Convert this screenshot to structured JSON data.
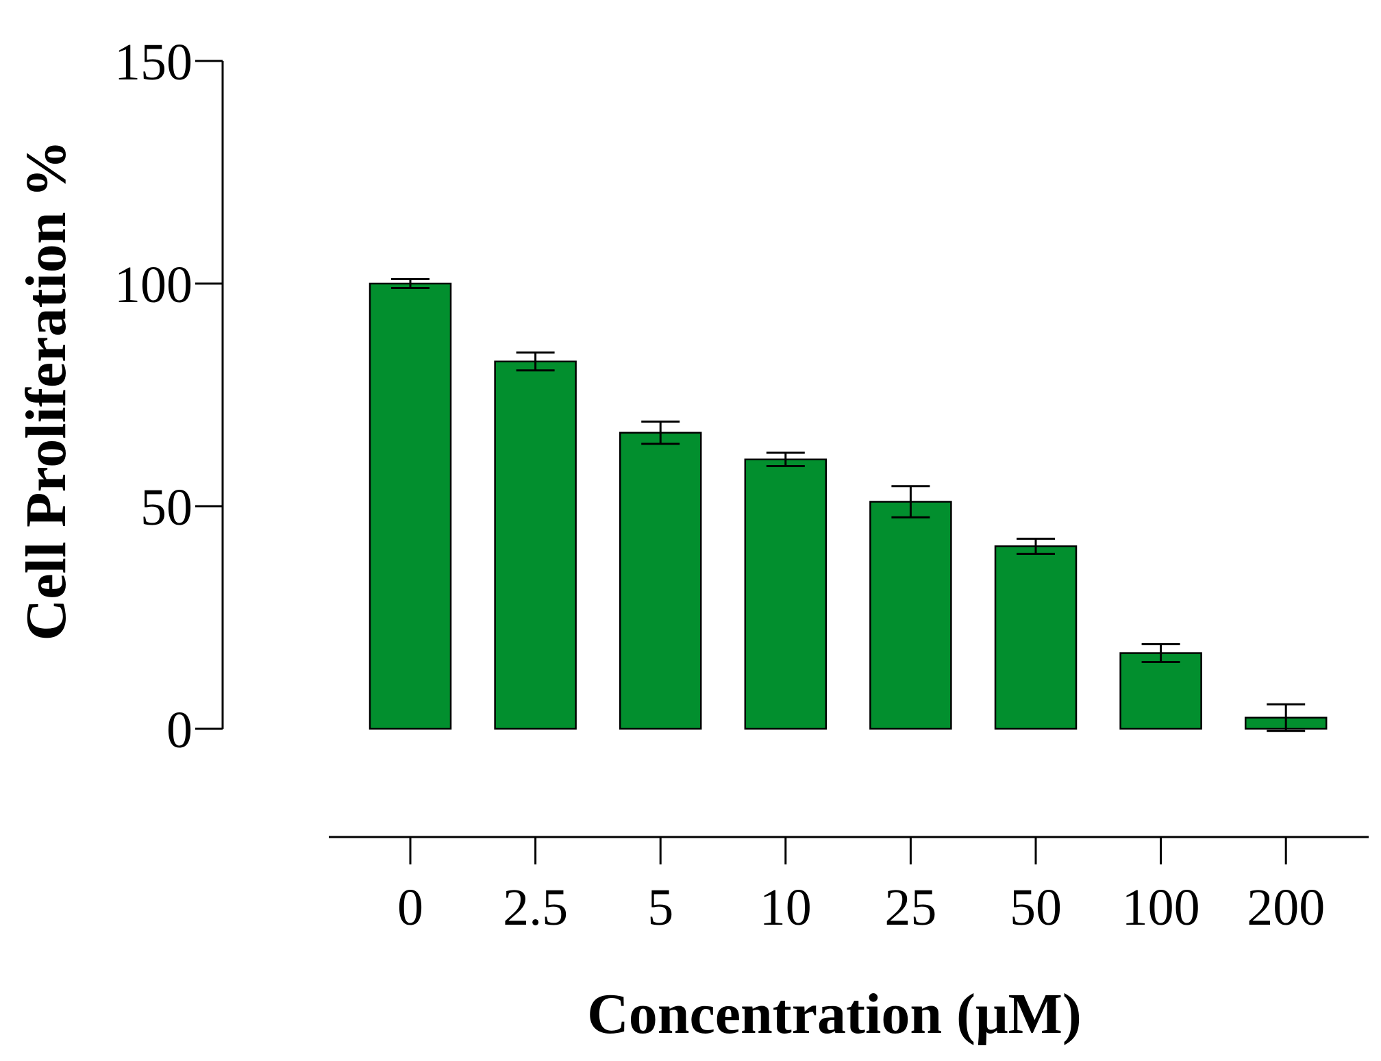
{
  "colors": {
    "bar_fill": "#028f2e",
    "axis": "#000000"
  },
  "chart_data": {
    "type": "bar",
    "categories": [
      "0",
      "2.5",
      "5",
      "10",
      "25",
      "50",
      "100",
      "200"
    ],
    "values": [
      100,
      82.5,
      66.5,
      60.5,
      51,
      41,
      17,
      2.5
    ],
    "errors": [
      1,
      2,
      2.5,
      1.5,
      3.5,
      1.7,
      2,
      3
    ],
    "xlabel": "Concentration (μM)",
    "ylabel": "Cell Proliferation %",
    "ylim": [
      0,
      150
    ],
    "yticks": [
      "0",
      "50",
      "100",
      "150"
    ],
    "grid": false,
    "legend": "none"
  }
}
